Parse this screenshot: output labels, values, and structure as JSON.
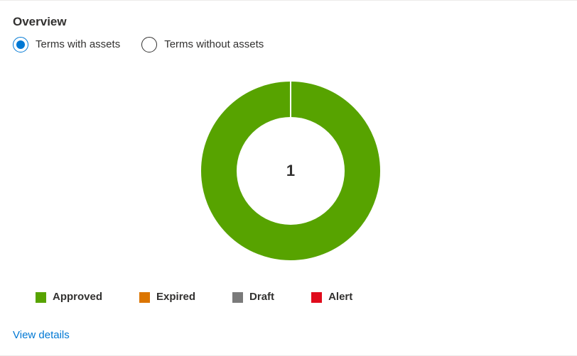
{
  "overview": {
    "title": "Overview"
  },
  "radio_options": [
    {
      "label": "Terms with assets",
      "checked": true
    },
    {
      "label": "Terms without assets",
      "checked": false
    }
  ],
  "chart_data": {
    "type": "pie",
    "center_label": "1",
    "categories": [
      "Approved",
      "Expired",
      "Draft",
      "Alert"
    ],
    "values": [
      1,
      0,
      0,
      0
    ],
    "colors": [
      "#57a300",
      "#db7500",
      "#7a7a7a",
      "#e00b1c"
    ]
  },
  "legend": [
    {
      "label": "Approved",
      "color": "#57a300"
    },
    {
      "label": "Expired",
      "color": "#db7500"
    },
    {
      "label": "Draft",
      "color": "#7a7a7a"
    },
    {
      "label": "Alert",
      "color": "#e00b1c"
    }
  ],
  "links": {
    "view_details": "View details"
  }
}
